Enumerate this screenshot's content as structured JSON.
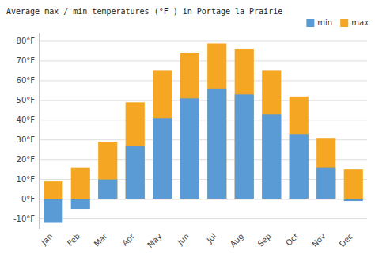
{
  "chart_data": {
    "type": "bar",
    "title": "Average max / min temperatures (°F ) in Portage la Prairie",
    "categories": [
      "Jan",
      "Feb",
      "Mar",
      "Apr",
      "May",
      "Jun",
      "Jul",
      "Aug",
      "Sep",
      "Oct",
      "Nov",
      "Dec"
    ],
    "series": [
      {
        "name": "min",
        "color": "#5b9bd5",
        "values": [
          -12,
          -5,
          10,
          27,
          41,
          51,
          56,
          53,
          43,
          33,
          16,
          -1
        ]
      },
      {
        "name": "max",
        "color": "#f5a623",
        "values": [
          9,
          16,
          29,
          49,
          65,
          74,
          79,
          76,
          65,
          52,
          31,
          15
        ]
      }
    ],
    "ylim": [
      -15,
      84
    ],
    "yticks": [
      {
        "value": -10,
        "label": "-10°F"
      },
      {
        "value": 0,
        "label": "0°F"
      },
      {
        "value": 10,
        "label": "10°F"
      },
      {
        "value": 20,
        "label": "20°F"
      },
      {
        "value": 30,
        "label": "30°F"
      },
      {
        "value": 40,
        "label": "40°F"
      },
      {
        "value": 50,
        "label": "50°F"
      },
      {
        "value": 60,
        "label": "60°F"
      },
      {
        "value": 70,
        "label": "70°F"
      },
      {
        "value": 80,
        "label": "80°F"
      }
    ],
    "grid": true,
    "legend": "upper right"
  }
}
